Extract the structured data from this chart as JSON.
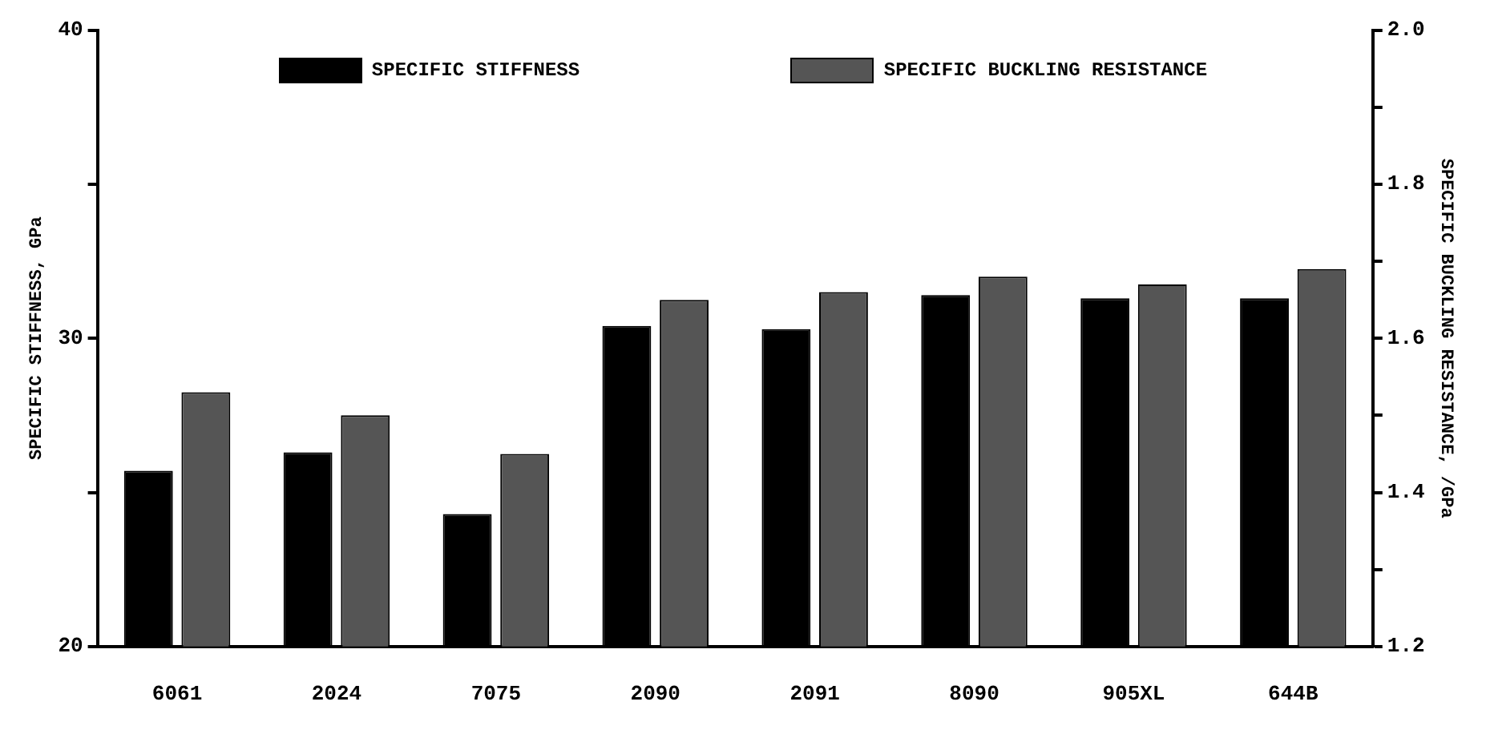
{
  "chart_data": {
    "type": "bar",
    "categories": [
      "6061",
      "2024",
      "7075",
      "2090",
      "2091",
      "8090",
      "905XL",
      "644B"
    ],
    "ylabel": "SPECIFIC STIFFNESS, GPa",
    "y2label": "SPECIFIC BUCKLING RESISTANCE, /GPa",
    "series": [
      {
        "name": "SPECIFIC STIFFNESS",
        "color": "#000000",
        "values": [
          25.7,
          26.3,
          24.3,
          30.4,
          30.3,
          31.4,
          31.3,
          31.3
        ]
      },
      {
        "name": "SPECIFIC BUCKLING RESISTANCE",
        "color": "#555555",
        "axis": "y2",
        "values": [
          1.53,
          1.5,
          1.45,
          1.65,
          1.66,
          1.68,
          1.67,
          1.69
        ]
      }
    ],
    "ylim": [
      20,
      40
    ],
    "yticks": [
      20,
      {
        "value": 25,
        "label": null
      },
      30,
      {
        "value": 35,
        "label": null
      },
      40
    ],
    "y2lim": [
      1.2,
      2.0
    ],
    "y2ticks": [
      "1.2",
      {
        "value": 1.3,
        "label": null
      },
      {
        "value": 1.4,
        "label": "1.4"
      },
      {
        "value": 1.5,
        "label": null
      },
      {
        "value": 1.6,
        "label": "1.6"
      },
      {
        "value": 1.7,
        "label": null
      },
      {
        "value": 1.8,
        "label": "1.8"
      },
      {
        "value": 1.9,
        "label": null
      },
      {
        "value": 2.0,
        "label": "2.0"
      }
    ],
    "legend": "top",
    "grid": false
  }
}
